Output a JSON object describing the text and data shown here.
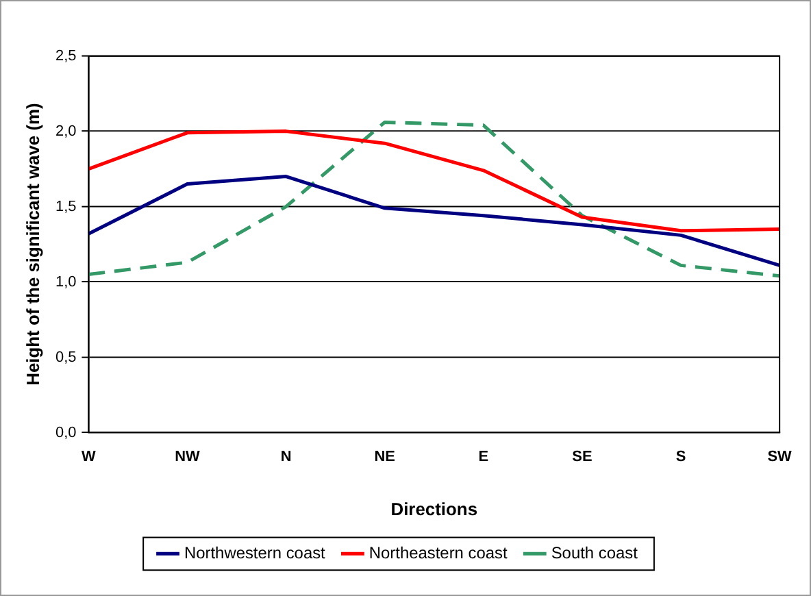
{
  "chart_data": {
    "type": "line",
    "xlabel": "Directions",
    "ylabel": "Height of the significant wave (m)",
    "categories": [
      "W",
      "NW",
      "N",
      "NE",
      "E",
      "SE",
      "S",
      "SW"
    ],
    "series": [
      {
        "name": "Northwestern coast",
        "color": "#000080",
        "values": [
          1.32,
          1.65,
          1.7,
          1.49,
          1.44,
          1.38,
          1.31,
          1.11
        ]
      },
      {
        "name": "Northeastern coast",
        "color": "#ff0000",
        "values": [
          1.75,
          1.99,
          2.0,
          1.92,
          1.74,
          1.43,
          1.34,
          1.35
        ]
      },
      {
        "name": "South coast",
        "color": "#339966",
        "line_style": "dashed",
        "values": [
          1.05,
          1.13,
          1.5,
          2.06,
          2.04,
          1.44,
          1.11,
          1.04
        ]
      }
    ],
    "ylim": [
      0,
      2.5
    ],
    "yticks": [
      {
        "value": 0,
        "label": "0,0"
      },
      {
        "value": 0.5,
        "label": "0,5"
      },
      {
        "value": 1,
        "label": "1,0"
      },
      {
        "value": 1.5,
        "label": "1,5"
      },
      {
        "value": 2,
        "label": "2,0"
      },
      {
        "value": 2.5,
        "label": "2,5"
      }
    ],
    "grid": "y",
    "legend": "bottom",
    "marker": "none"
  }
}
